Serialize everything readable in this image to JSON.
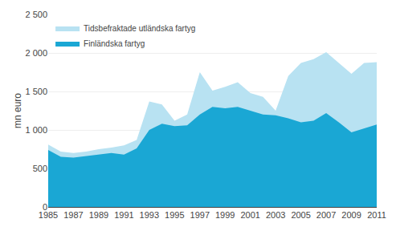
{
  "chart_data": {
    "type": "area",
    "ylabel": "mn euro",
    "x": [
      1985,
      1986,
      1987,
      1988,
      1989,
      1990,
      1991,
      1992,
      1993,
      1994,
      1995,
      1996,
      1997,
      1998,
      1999,
      2000,
      2001,
      2002,
      2003,
      2004,
      2005,
      2006,
      2007,
      2008,
      2009,
      2010,
      2011
    ],
    "series": [
      {
        "name": "Tidsbefraktade utländska fartyg",
        "color": "#b8e2f2",
        "values": [
          810,
          720,
          700,
          720,
          750,
          770,
          800,
          870,
          1370,
          1330,
          1120,
          1200,
          1750,
          1510,
          1560,
          1620,
          1480,
          1430,
          1250,
          1700,
          1870,
          1920,
          2010,
          1870,
          1730,
          1870,
          1880
        ]
      },
      {
        "name": "Finländska fartyg",
        "color": "#1aa7d4",
        "values": [
          740,
          650,
          640,
          660,
          680,
          700,
          680,
          760,
          1000,
          1080,
          1050,
          1060,
          1200,
          1300,
          1280,
          1300,
          1250,
          1200,
          1190,
          1150,
          1100,
          1120,
          1220,
          1100,
          970,
          1020,
          1070
        ]
      }
    ],
    "stacked": false,
    "xlim": [
      1985,
      2011
    ],
    "xticks": [
      1985,
      1987,
      1989,
      1991,
      1993,
      1995,
      1997,
      1999,
      2001,
      2003,
      2005,
      2007,
      2009,
      2011
    ],
    "ylim": [
      0,
      2500
    ],
    "yticks": [
      0,
      500,
      {
        "value": 1000,
        "label": "1 000"
      },
      {
        "value": 1500,
        "label": "1 500"
      },
      {
        "value": 2000,
        "label": "2 000"
      },
      {
        "value": 2500,
        "label": "2 500"
      }
    ],
    "grid": true,
    "legend": "upper left"
  }
}
